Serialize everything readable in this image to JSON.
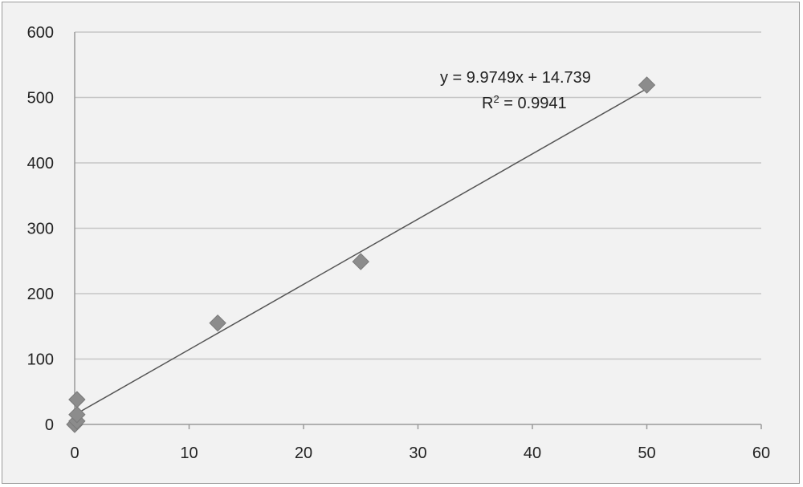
{
  "chart_data": {
    "type": "scatter",
    "xlim": [
      0,
      60
    ],
    "ylim": [
      0,
      600
    ],
    "x_ticks": [
      "0",
      "10",
      "20",
      "30",
      "40",
      "50",
      "60"
    ],
    "y_ticks": [
      "0",
      "100",
      "200",
      "300",
      "400",
      "500",
      "600"
    ],
    "grid": "horizontal",
    "legend": "none",
    "series": [
      {
        "points": [
          {
            "x": 0,
            "y": 0
          },
          {
            "x": 0.2,
            "y": 5
          },
          {
            "x": 0.2,
            "y": 15
          },
          {
            "x": 0.2,
            "y": 38
          },
          {
            "x": 12.5,
            "y": 155
          },
          {
            "x": 25,
            "y": 249
          },
          {
            "x": 50,
            "y": 519
          }
        ]
      }
    ],
    "trendline": {
      "type": "linear",
      "slope": 9.9749,
      "intercept": 14.739,
      "equation_label": "y = 9.9749x + 14.739",
      "r2_prefix": "R",
      "r2_value": " = 0.9941"
    },
    "colors": {
      "marker": "#8c8c8c",
      "line": "#555555",
      "grid": "#c6c6c6",
      "background": "#f2f2f2"
    }
  }
}
